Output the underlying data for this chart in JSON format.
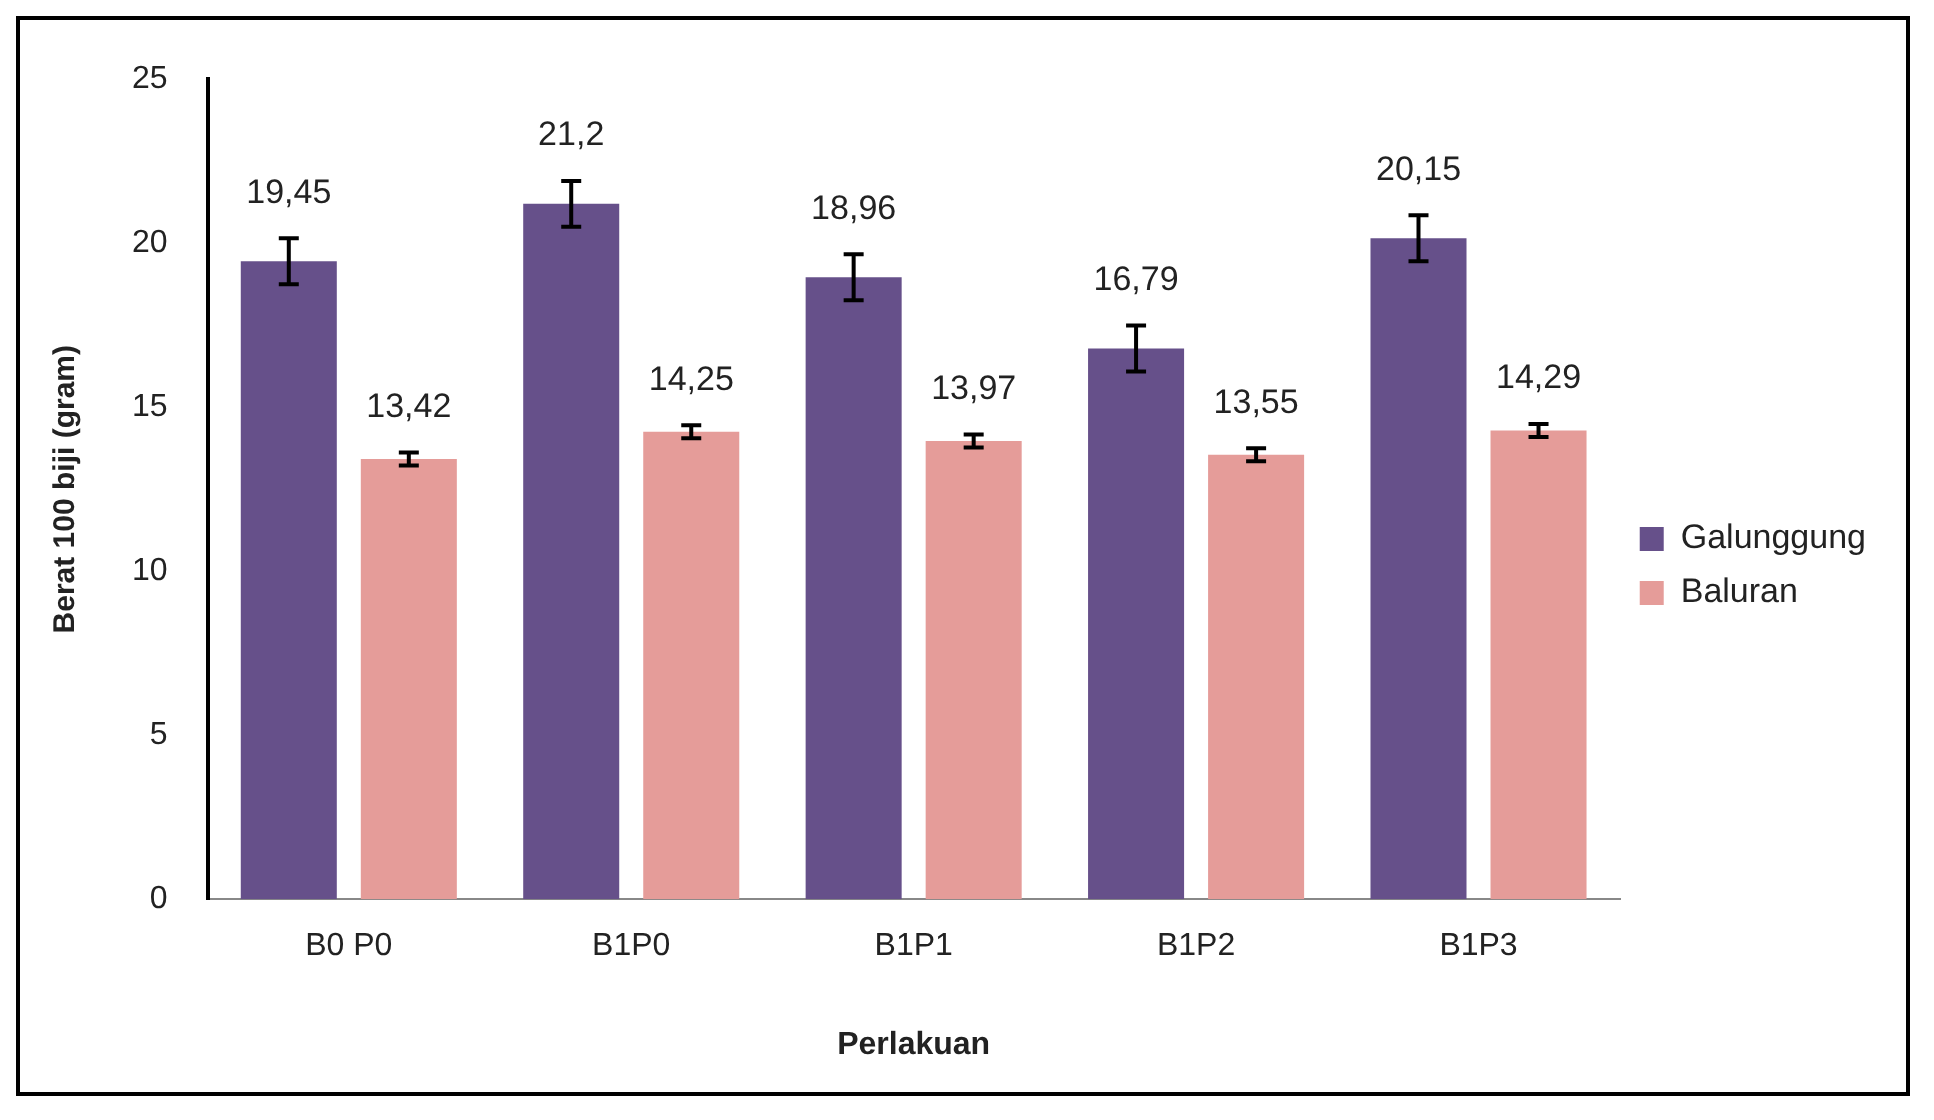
{
  "chart_data": {
    "type": "bar",
    "xlabel": "Perlakuan",
    "ylabel": "Berat 100 biji (gram)",
    "categories": [
      "B0 P0",
      "B1P0",
      "B1P1",
      "B1P2",
      "B1P3"
    ],
    "series": [
      {
        "name": "Galunggung",
        "color": "#66508a",
        "values": [
          19.45,
          21.2,
          18.96,
          16.79,
          20.15
        ],
        "errors": [
          0.7,
          0.7,
          0.7,
          0.7,
          0.7
        ],
        "value_labels": [
          "19,45",
          "21,2",
          "18,96",
          "16,79",
          "20,15"
        ]
      },
      {
        "name": "Baluran",
        "color": "#e59c99",
        "values": [
          13.42,
          14.25,
          13.97,
          13.55,
          14.29
        ],
        "errors": [
          0.2,
          0.2,
          0.2,
          0.2,
          0.2
        ],
        "value_labels": [
          "13,42",
          "14,25",
          "13,97",
          "13,55",
          "14,29"
        ]
      }
    ],
    "ylim": [
      0,
      25
    ],
    "yticks": [
      0,
      5,
      10,
      15,
      20,
      25
    ],
    "grid": false,
    "legend": "right"
  }
}
